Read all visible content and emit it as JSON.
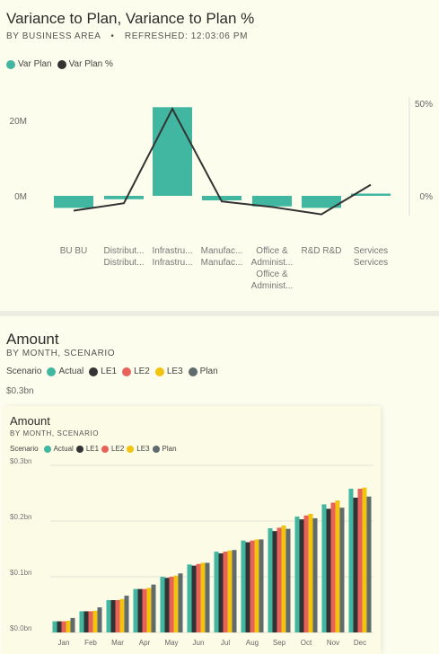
{
  "card1": {
    "title": "Variance to Plan, Variance to Plan %",
    "subtitle_part1": "BY BUSINESS AREA",
    "separator": "•",
    "subtitle_part2": "REFRESHED: 12:03:06 PM",
    "legend": [
      {
        "label": "Var Plan",
        "color": "#41b6a0",
        "icon": "teal-dot"
      },
      {
        "label": "Var Plan %",
        "color": "#333333",
        "icon": "dark-dot"
      }
    ],
    "left_axis_ticks": [
      "20M",
      "0M"
    ],
    "right_axis_ticks": [
      "50%",
      "0%"
    ]
  },
  "card2": {
    "title": "Amount",
    "subtitle": "BY MONTH, SCENARIO",
    "legend_title": "Scenario",
    "legend": [
      {
        "label": "Actual",
        "color": "#41b6a0"
      },
      {
        "label": "LE1",
        "color": "#333333"
      },
      {
        "label": "LE2",
        "color": "#e8625a"
      },
      {
        "label": "LE3",
        "color": "#f2c40f"
      },
      {
        "label": "Plan",
        "color": "#5f6b6d"
      }
    ],
    "axis_top_label": "$0.3bn"
  },
  "card3": {
    "title": "Amount",
    "subtitle": "BY MONTH, SCENARIO",
    "legend_title": "Scenario",
    "legend": [
      {
        "label": "Actual",
        "color": "#41b6a0"
      },
      {
        "label": "LE1",
        "color": "#333333"
      },
      {
        "label": "LE2",
        "color": "#e8625a"
      },
      {
        "label": "LE3",
        "color": "#f2c40f"
      },
      {
        "label": "Plan",
        "color": "#5f6b6d"
      }
    ]
  },
  "chart_data": [
    {
      "type": "bar",
      "title": "Variance to Plan, Variance to Plan %",
      "categories": [
        [
          "BU BU"
        ],
        [
          "Distribut...",
          "Distribut..."
        ],
        [
          "Infrastru...",
          "Infrastru..."
        ],
        [
          "Manufac...",
          "Manufac..."
        ],
        [
          "Office &",
          "Administ...",
          "Office &",
          "Administ..."
        ],
        [
          "R&D R&D"
        ],
        [
          "Services",
          "Services"
        ]
      ],
      "series": [
        {
          "name": "Var Plan",
          "type": "bar",
          "values": [
            -3.2,
            -0.9,
            23.5,
            -1.2,
            -2.8,
            -3.2,
            0.6
          ]
        },
        {
          "name": "Var Plan %",
          "type": "line",
          "values": [
            -8,
            -4,
            47,
            -3,
            -6,
            -10,
            6
          ]
        }
      ],
      "ylim_left": [
        -5,
        25
      ],
      "ylim_right": [
        -12,
        52
      ],
      "left_ticks": [
        20,
        0
      ],
      "right_ticks": [
        50,
        0
      ],
      "grid": false
    },
    {
      "type": "bar",
      "title": "Amount",
      "categories": [
        "Jan",
        "Feb",
        "Mar",
        "Apr",
        "May",
        "Jun",
        "Jul",
        "Aug",
        "Sep",
        "Oct",
        "Nov",
        "Dec"
      ],
      "series": [
        {
          "name": "Actual",
          "values": [
            0.02,
            0.038,
            0.058,
            0.078,
            0.1,
            0.122,
            0.145,
            0.165,
            0.187,
            0.208,
            0.23,
            0.258
          ]
        },
        {
          "name": "LE1",
          "values": [
            0.02,
            0.038,
            0.058,
            0.078,
            0.098,
            0.12,
            0.142,
            0.162,
            0.182,
            0.203,
            0.222,
            0.242
          ]
        },
        {
          "name": "LE2",
          "values": [
            0.02,
            0.038,
            0.058,
            0.078,
            0.1,
            0.123,
            0.145,
            0.165,
            0.188,
            0.21,
            0.233,
            0.258
          ]
        },
        {
          "name": "LE3",
          "values": [
            0.021,
            0.039,
            0.06,
            0.08,
            0.102,
            0.125,
            0.147,
            0.167,
            0.192,
            0.213,
            0.237,
            0.26
          ]
        },
        {
          "name": "Plan",
          "values": [
            0.026,
            0.045,
            0.066,
            0.086,
            0.106,
            0.125,
            0.148,
            0.167,
            0.186,
            0.205,
            0.224,
            0.244
          ]
        }
      ],
      "ylim": [
        0,
        0.3
      ],
      "y_ticks": [
        "$0.0bn",
        "$0.1bn",
        "$0.2bn",
        "$0.3bn"
      ],
      "grid": true
    }
  ]
}
